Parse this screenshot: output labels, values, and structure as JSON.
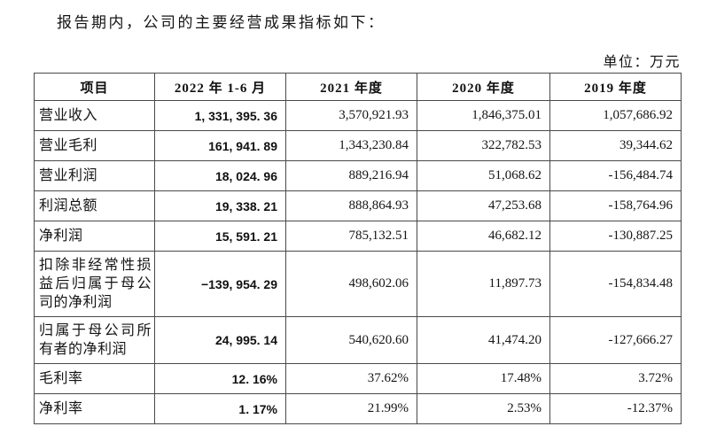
{
  "page": {
    "intro_text": "报告期内，公司的主要经营成果指标如下：",
    "unit_label": "单位：万元"
  },
  "table": {
    "headers": [
      "项目",
      "2022 年 1-6 月",
      "2021 年度",
      "2020 年度",
      "2019 年度"
    ],
    "rows": [
      {
        "label": "营业收入",
        "values": [
          "1, 331, 395. 36",
          "3,570,921.93",
          "1,846,375.01",
          "1,057,686.92"
        ]
      },
      {
        "label": "营业毛利",
        "values": [
          "161, 941. 89",
          "1,343,230.84",
          "322,782.53",
          "39,344.62"
        ]
      },
      {
        "label": "营业利润",
        "values": [
          "18, 024. 96",
          "889,216.94",
          "51,068.62",
          "-156,484.74"
        ]
      },
      {
        "label": "利润总额",
        "values": [
          "19, 338. 21",
          "888,864.93",
          "47,253.68",
          "-158,764.96"
        ]
      },
      {
        "label": "净利润",
        "values": [
          "15, 591. 21",
          "785,132.51",
          "46,682.12",
          "-130,887.25"
        ]
      },
      {
        "label": "扣除非经常性损益后归属于母公司的净利润",
        "values": [
          "−139, 954. 29",
          "498,602.06",
          "11,897.73",
          "-154,834.48"
        ]
      },
      {
        "label": "归属于母公司所有者的净利润",
        "values": [
          "24, 995. 14",
          "540,620.60",
          "41,474.20",
          "-127,666.27"
        ]
      },
      {
        "label": "毛利率",
        "values": [
          "12. 16%",
          "37.62%",
          "17.48%",
          "3.72%"
        ]
      },
      {
        "label": "净利率",
        "values": [
          "1. 17%",
          "21.99%",
          "2.53%",
          "-12.37%"
        ]
      }
    ]
  },
  "colors": {
    "background": "#ffffff",
    "text": "#141414",
    "table_border": "#494949"
  }
}
